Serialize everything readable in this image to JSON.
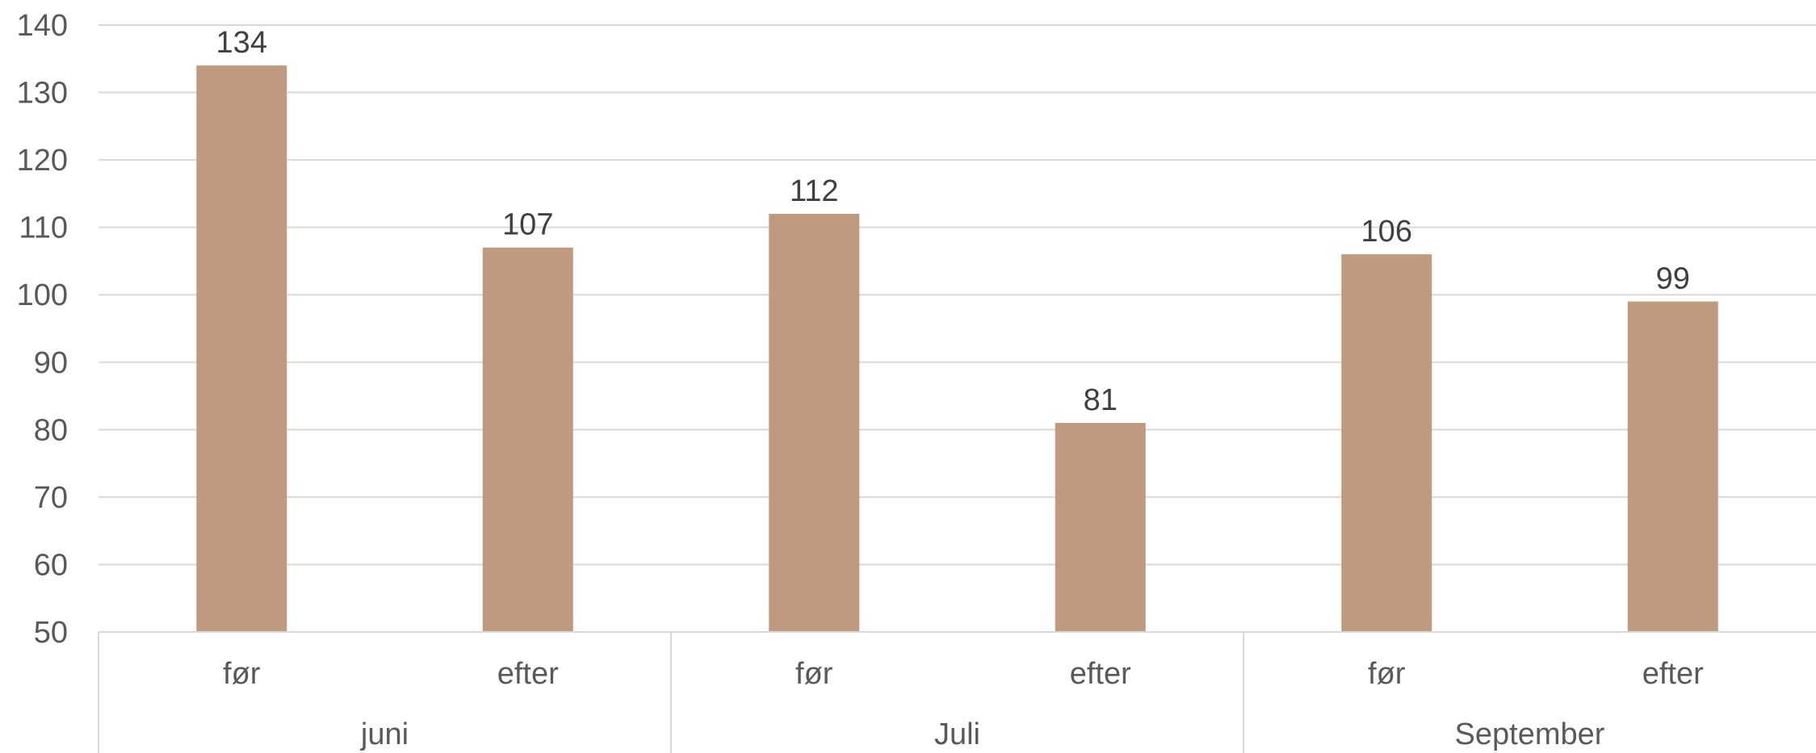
{
  "chart_data": {
    "type": "bar",
    "groups": [
      {
        "label": "juni",
        "categories": [
          "før",
          "efter"
        ],
        "values": [
          134,
          107
        ]
      },
      {
        "label": "Juli",
        "categories": [
          "før",
          "efter"
        ],
        "values": [
          112,
          81
        ]
      },
      {
        "label": "September",
        "categories": [
          "før",
          "efter"
        ],
        "values": [
          106,
          99
        ]
      }
    ],
    "title": "",
    "xlabel": "",
    "ylabel": "",
    "ylim": [
      50,
      140
    ],
    "yticks": [
      "50",
      "60",
      "70",
      "80",
      "90",
      "100",
      "110",
      "120",
      "130",
      "140"
    ],
    "grid": true,
    "legend": "none",
    "bar_color": "#BF9A7F",
    "data_labels": [
      "134",
      "107",
      "112",
      "81",
      "106",
      "99"
    ]
  }
}
